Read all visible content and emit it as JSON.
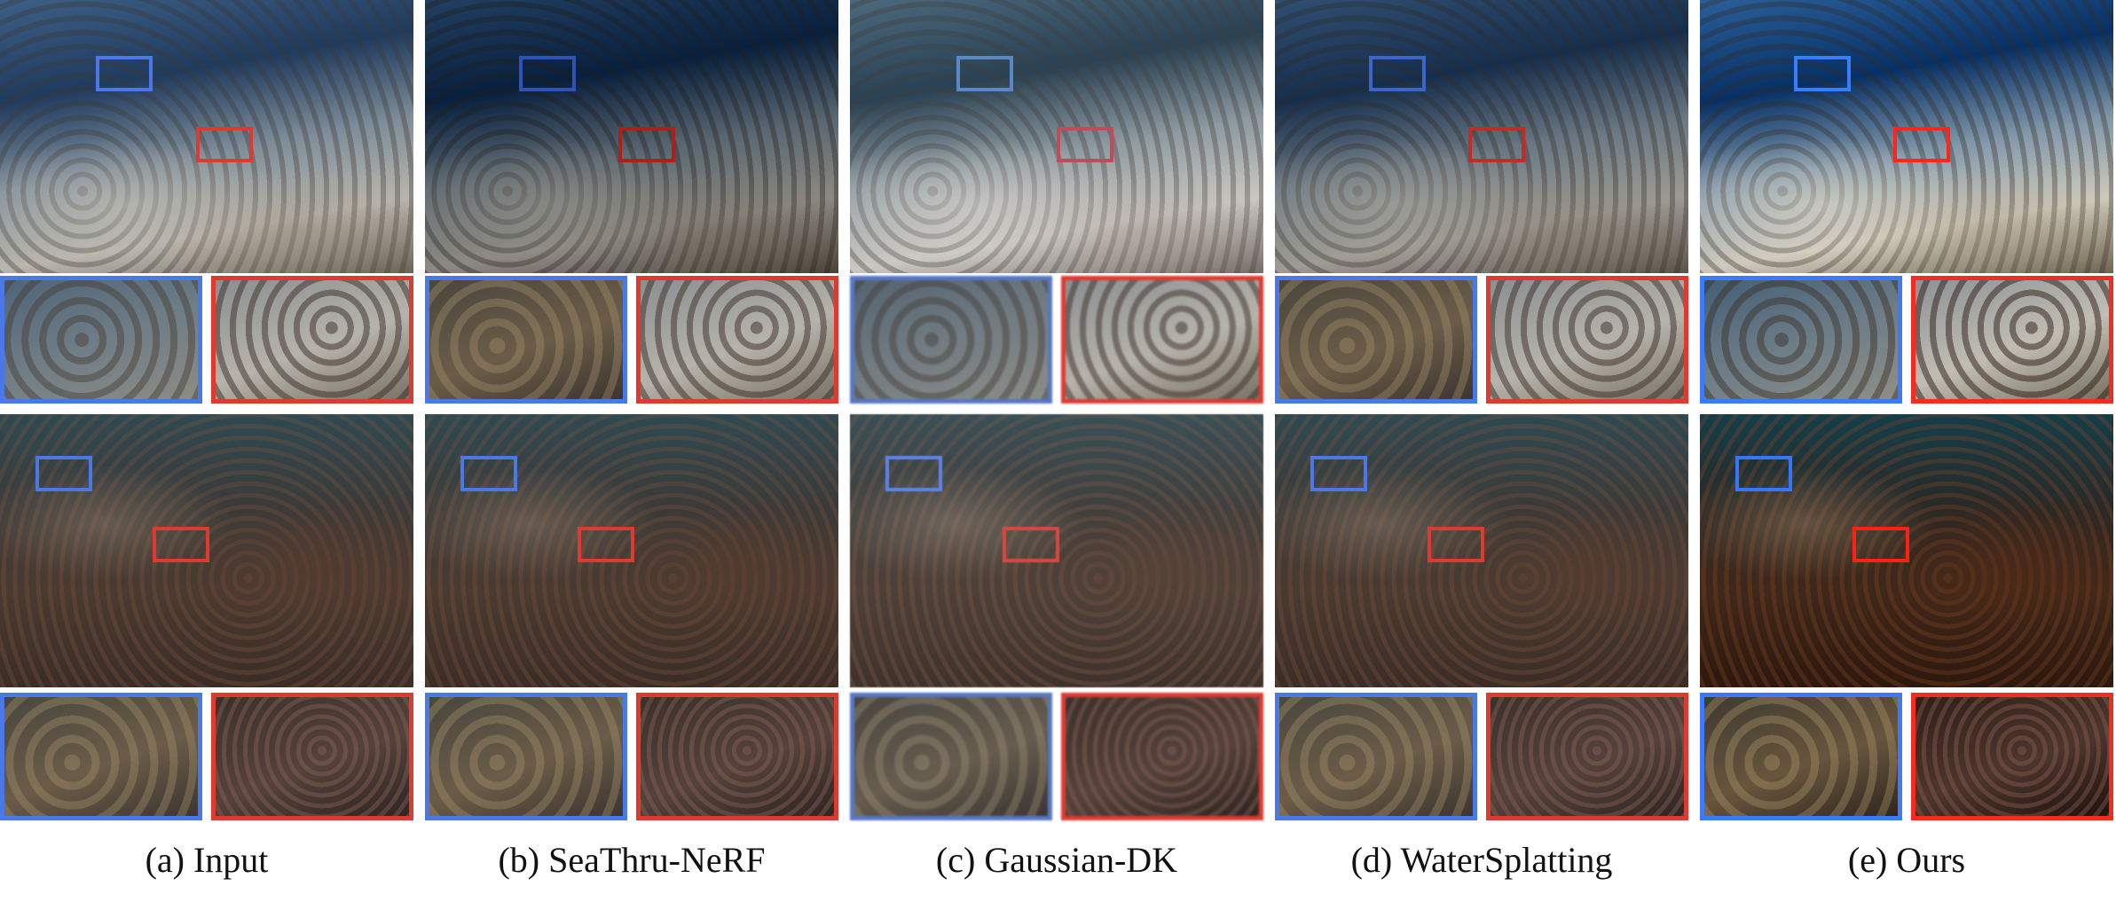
{
  "captions": {
    "a": "(a) Input",
    "b": "(b) SeaThru-NeRF",
    "c": "(c) Gaussian-DK",
    "d": "(d) WaterSplatting",
    "e": "(e) Ours"
  },
  "colors": {
    "blue_box": "#4a78e8",
    "red_box": "#df3a32"
  }
}
